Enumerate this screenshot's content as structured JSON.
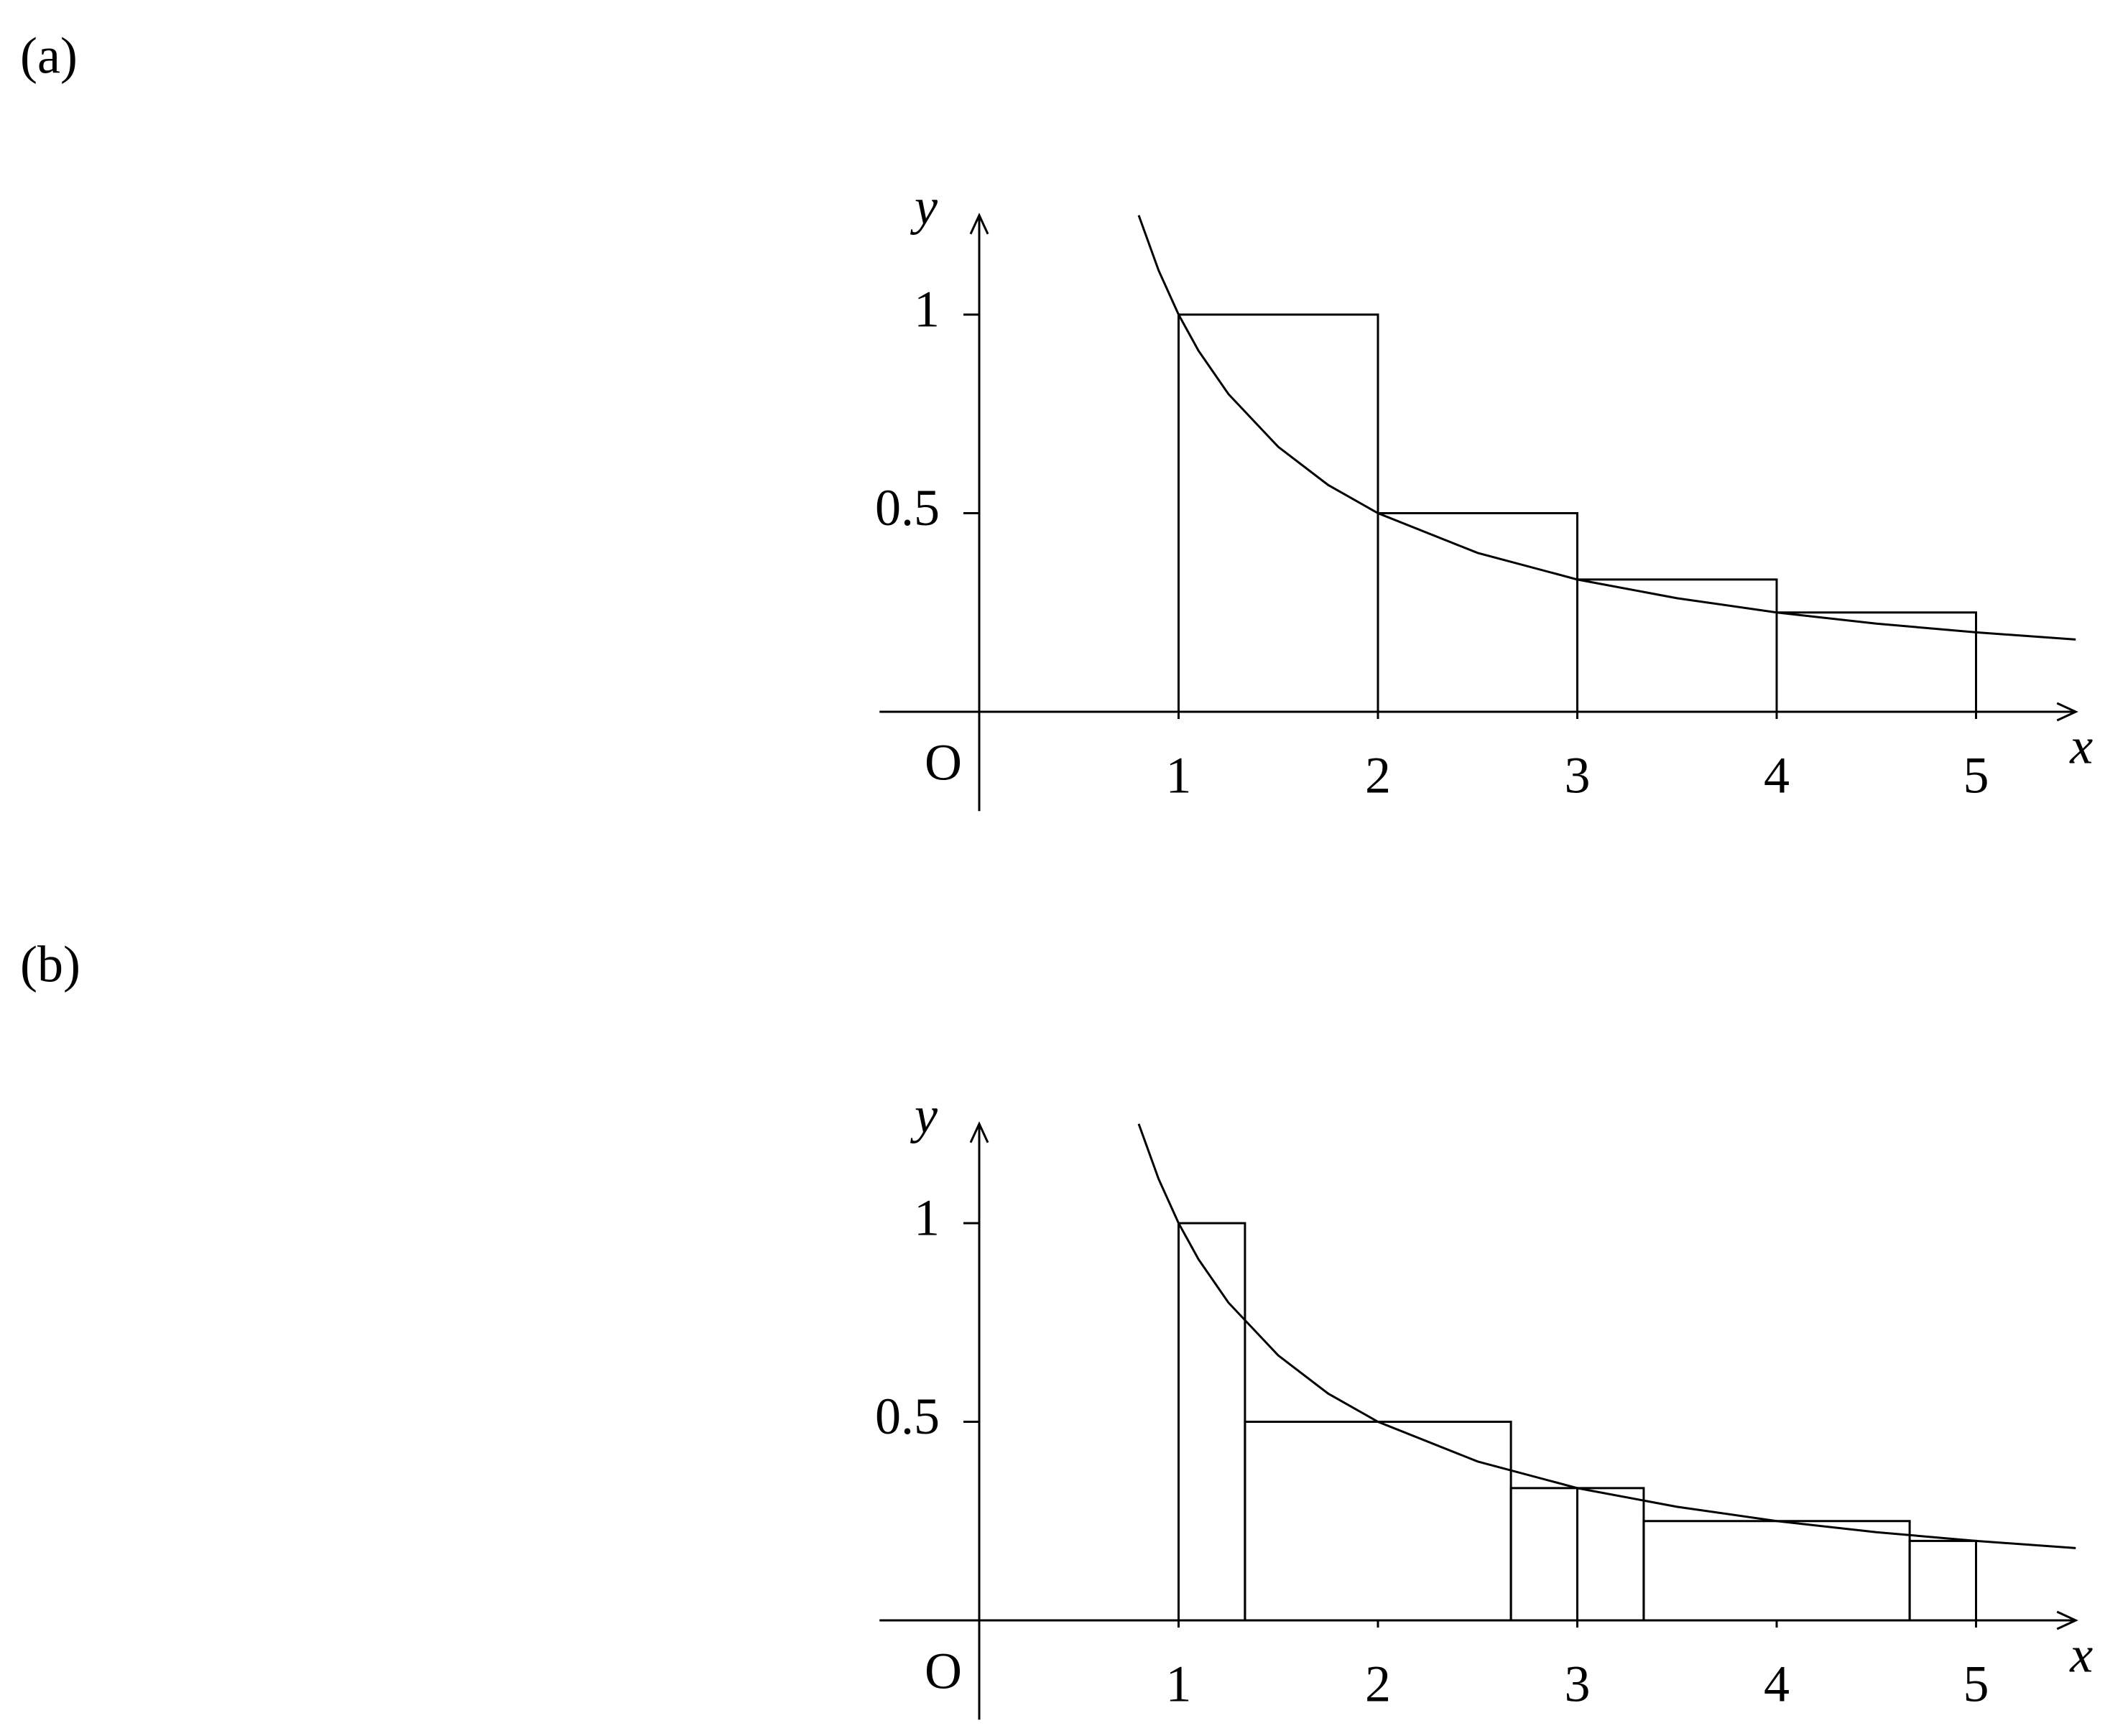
{
  "chart_data": [
    {
      "type": "histogram",
      "panel_label": "(a)",
      "x_label": "x",
      "y_label": "y",
      "origin_label": "O",
      "bins": [
        1,
        2,
        3,
        4,
        5
      ],
      "values": [
        1,
        0.5,
        0.333,
        0.25
      ],
      "curve": {
        "x": [
          0.8,
          0.9,
          1,
          1.1,
          1.25,
          1.5,
          1.75,
          2,
          2.5,
          3,
          3.5,
          4,
          4.5,
          5,
          5.5
        ],
        "values": [
          1.25,
          1.111,
          1,
          0.909,
          0.8,
          0.667,
          0.571,
          0.5,
          0.4,
          0.333,
          0.286,
          0.25,
          0.222,
          0.2,
          0.182
        ]
      },
      "xlim": [
        -0.5,
        5.5
      ],
      "ylim": [
        -0.25,
        1.25
      ],
      "xticks": [
        1,
        2,
        3,
        4,
        5
      ],
      "yticks": [
        1,
        0.5
      ],
      "color": "#000000"
    },
    {
      "type": "histogram",
      "panel_label": "(b)",
      "x_label": "x",
      "y_label": "y",
      "origin_label": "O",
      "bins": [
        1,
        1.333,
        2.667,
        3,
        3.333,
        4.667,
        5
      ],
      "values": [
        1,
        0.5,
        0.333,
        0.333,
        0.25,
        0.2
      ],
      "curve": {
        "x": [
          0.8,
          0.9,
          1,
          1.1,
          1.25,
          1.5,
          1.75,
          2,
          2.5,
          3,
          3.5,
          4,
          4.5,
          5,
          5.5
        ],
        "values": [
          1.25,
          1.111,
          1,
          0.909,
          0.8,
          0.667,
          0.571,
          0.5,
          0.4,
          0.333,
          0.286,
          0.25,
          0.222,
          0.2,
          0.182
        ]
      },
      "xlim": [
        -0.5,
        5.5
      ],
      "ylim": [
        -0.25,
        1.25
      ],
      "xticks": [
        1,
        2,
        3,
        4,
        5
      ],
      "yticks": [
        1,
        0.5
      ],
      "color": "#000000"
    }
  ]
}
